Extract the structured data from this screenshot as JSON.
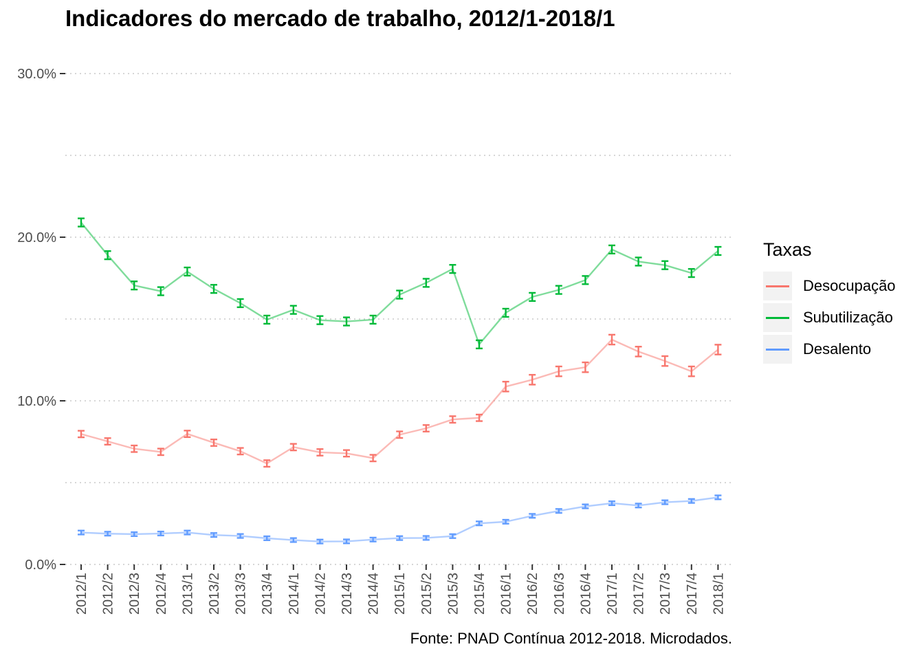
{
  "chart_data": {
    "type": "line",
    "title": "Indicadores do mercado de trabalho, 2012/1-2018/1",
    "caption": "Fonte: PNAD Contínua 2012-2018. Microdados.",
    "xlabel": "",
    "ylabel": "",
    "ylim": [
      0,
      30
    ],
    "y_ticks": [
      "0.0%",
      "10.0%",
      "20.0%",
      "30.0%"
    ],
    "y_tick_values": [
      0,
      10,
      20,
      30
    ],
    "grid": true,
    "legend_title": "Taxas",
    "legend_position": "right",
    "categories": [
      "2012/1",
      "2012/2",
      "2012/3",
      "2012/4",
      "2013/1",
      "2013/2",
      "2013/3",
      "2013/4",
      "2014/1",
      "2014/2",
      "2014/3",
      "2014/4",
      "2015/1",
      "2015/2",
      "2015/3",
      "2015/4",
      "2016/1",
      "2016/2",
      "2016/3",
      "2016/4",
      "2017/1",
      "2017/2",
      "2017/3",
      "2017/4",
      "2018/1"
    ],
    "series": [
      {
        "name": "Desocupação",
        "color": "#F8766D",
        "values": [
          7.97,
          7.52,
          7.07,
          6.88,
          7.98,
          7.44,
          6.92,
          6.17,
          7.17,
          6.85,
          6.79,
          6.5,
          7.93,
          8.32,
          8.86,
          8.96,
          10.87,
          11.29,
          11.8,
          12.05,
          13.74,
          13.01,
          12.43,
          11.8,
          13.13
        ],
        "error": [
          0.2,
          0.2,
          0.2,
          0.2,
          0.2,
          0.2,
          0.2,
          0.2,
          0.2,
          0.2,
          0.2,
          0.2,
          0.2,
          0.2,
          0.2,
          0.2,
          0.3,
          0.3,
          0.3,
          0.3,
          0.3,
          0.3,
          0.3,
          0.3,
          0.3
        ]
      },
      {
        "name": "Subutilização",
        "color": "#00BA38",
        "values": [
          20.9,
          18.9,
          17.05,
          16.7,
          17.9,
          16.84,
          15.97,
          14.96,
          15.56,
          14.93,
          14.85,
          14.96,
          16.49,
          17.21,
          18.06,
          13.45,
          15.38,
          16.35,
          16.78,
          17.38,
          19.25,
          18.51,
          18.29,
          17.81,
          19.16
        ]
      },
      {
        "name": "Desalento",
        "color": "#619CFF",
        "values": [
          1.95,
          1.88,
          1.85,
          1.89,
          1.95,
          1.8,
          1.74,
          1.6,
          1.49,
          1.4,
          1.41,
          1.52,
          1.61,
          1.62,
          1.73,
          2.51,
          2.61,
          2.97,
          3.27,
          3.55,
          3.74,
          3.6,
          3.8,
          3.88,
          4.1
        ]
      }
    ]
  }
}
